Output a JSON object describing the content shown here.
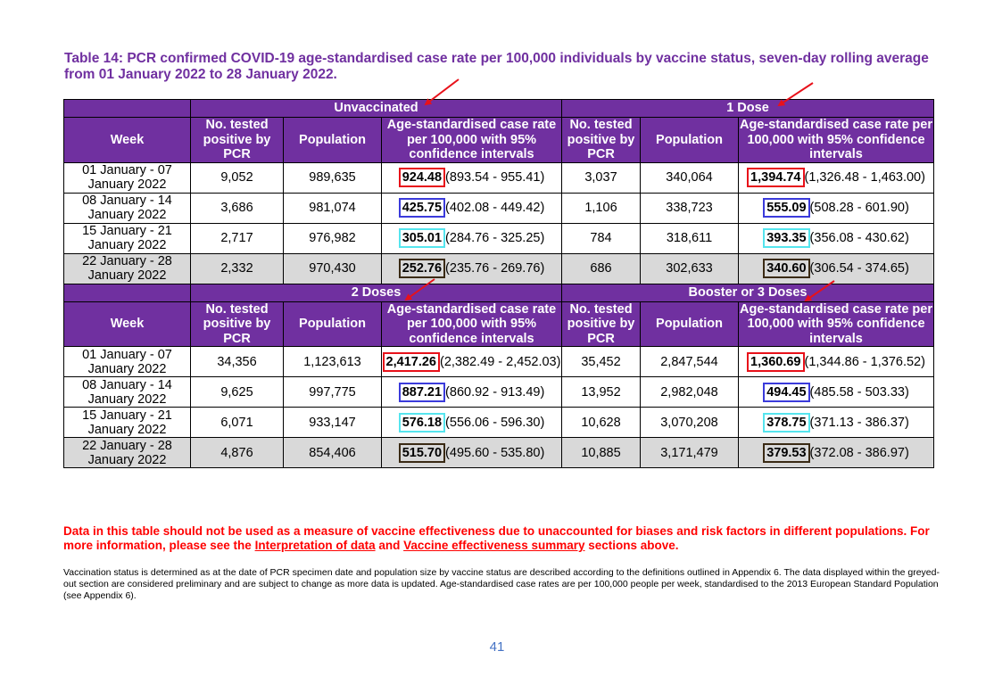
{
  "title": "Table 14: PCR confirmed COVID-19 age-standardised case rate per 100,000 individuals by vaccine status, seven-day rolling average from 01 January 2022 to 28 January 2022.",
  "headers": {
    "week": "Week",
    "tested": "No. tested positive by PCR",
    "population": "Population",
    "rate": "Age-standardised case rate per 100,000 with 95% confidence intervals"
  },
  "sections": [
    {
      "groups": [
        "Unvaccinated",
        "1 Dose"
      ],
      "rows": [
        {
          "week": "01 January - 07 January 2022",
          "a_tested": "9,052",
          "a_pop": "989,635",
          "a_rate": "924.48",
          "a_ci": "(893.54 - 955.41)",
          "b_tested": "3,037",
          "b_pop": "340,064",
          "b_rate": "1,394.74",
          "b_ci": "(1,326.48 - 1,463.00)"
        },
        {
          "week": "08 January - 14 January 2022",
          "a_tested": "3,686",
          "a_pop": "981,074",
          "a_rate": "425.75",
          "a_ci": "(402.08 - 449.42)",
          "b_tested": "1,106",
          "b_pop": "338,723",
          "b_rate": "555.09",
          "b_ci": "(508.28 - 601.90)"
        },
        {
          "week": "15 January - 21 January 2022",
          "a_tested": "2,717",
          "a_pop": "976,982",
          "a_rate": "305.01",
          "a_ci": "(284.76 - 325.25)",
          "b_tested": "784",
          "b_pop": "318,611",
          "b_rate": "393.35",
          "b_ci": "(356.08 - 430.62)"
        },
        {
          "week": "22 January - 28 January 2022",
          "a_tested": "2,332",
          "a_pop": "970,430",
          "a_rate": "252.76",
          "a_ci": "(235.76 - 269.76)",
          "b_tested": "686",
          "b_pop": "302,633",
          "b_rate": "340.60",
          "b_ci": "(306.54 - 374.65)"
        }
      ]
    },
    {
      "groups": [
        "2 Doses",
        "Booster or 3 Doses"
      ],
      "rows": [
        {
          "week": "01 January - 07 January 2022",
          "a_tested": "34,356",
          "a_pop": "1,123,613",
          "a_rate": "2,417.26",
          "a_ci": "(2,382.49 - 2,452.03)",
          "b_tested": "35,452",
          "b_pop": "2,847,544",
          "b_rate": "1,360.69",
          "b_ci": "(1,344.86 - 1,376.52)"
        },
        {
          "week": "08 January - 14 January 2022",
          "a_tested": "9,625",
          "a_pop": "997,775",
          "a_rate": "887.21",
          "a_ci": "(860.92 - 913.49)",
          "b_tested": "13,952",
          "b_pop": "2,982,048",
          "b_rate": "494.45",
          "b_ci": "(485.58 - 503.33)"
        },
        {
          "week": "15 January - 21 January 2022",
          "a_tested": "6,071",
          "a_pop": "933,147",
          "a_rate": "576.18",
          "a_ci": "(556.06 - 596.30)",
          "b_tested": "10,628",
          "b_pop": "3,070,208",
          "b_rate": "378.75",
          "b_ci": "(371.13 - 386.37)"
        },
        {
          "week": "22 January - 28 January 2022",
          "a_tested": "4,876",
          "a_pop": "854,406",
          "a_rate": "515.70",
          "a_ci": "(495.60 - 535.80)",
          "b_tested": "10,885",
          "b_pop": "3,171,479",
          "b_rate": "379.53",
          "b_ci": "(372.08 - 386.97)"
        }
      ]
    }
  ],
  "highlight_colors": [
    "#e8111a",
    "#3b3bdb",
    "#55e5ee",
    "#3a2a14"
  ],
  "arrow_color": "#e8111a",
  "note": {
    "part1": "Data in this table should not be used as a measure of vaccine effectiveness due to unaccounted for biases and risk factors in different populations. For more information, please see the ",
    "link1": "Interpretation of data",
    "part2": " and ",
    "link2": "Vaccine effectiveness summary",
    "part3": " sections above."
  },
  "footnote": "Vaccination status is determined as at the date of PCR specimen date and population size by vaccine status are described according to the definitions outlined in Appendix 6. The data displayed within the greyed-out section are considered preliminary and are subject to change as more data is updated. Age-standardised case rates are per 100,000 people per week, standardised to the 2013 European Standard Population (see Appendix 6).",
  "page_number": "41"
}
